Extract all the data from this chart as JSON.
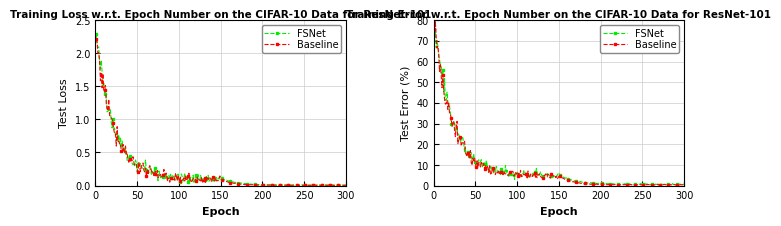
{
  "left_title": "Training Loss w.r.t. Epoch Number on the CIFAR-10 Data for ResNet-101",
  "right_title": "Training Error w.r.t. Epoch Number on the CIFAR-10 Data for ResNet-101",
  "left_ylabel": "Test Loss",
  "right_ylabel": "Test Error (%)",
  "xlabel": "Epoch",
  "xlim": [
    0,
    300
  ],
  "left_ylim": [
    0,
    2.5
  ],
  "right_ylim": [
    0,
    80
  ],
  "left_yticks": [
    0,
    0.5,
    1.0,
    1.5,
    2.0,
    2.5
  ],
  "right_yticks": [
    0,
    10,
    20,
    30,
    40,
    50,
    60,
    70,
    80
  ],
  "xticks": [
    0,
    50,
    100,
    150,
    200,
    250,
    300
  ],
  "fsnet_color": "#00EE00",
  "baseline_color": "#FF0000",
  "legend_labels": [
    "FSNet",
    "Baseline"
  ],
  "background_color": "#ffffff",
  "grid_color": "#cccccc",
  "title_fontsize": 7.5,
  "label_fontsize": 8,
  "tick_fontsize": 7,
  "legend_fontsize": 7,
  "n_epochs_phase1": 150,
  "n_epochs_total": 300
}
